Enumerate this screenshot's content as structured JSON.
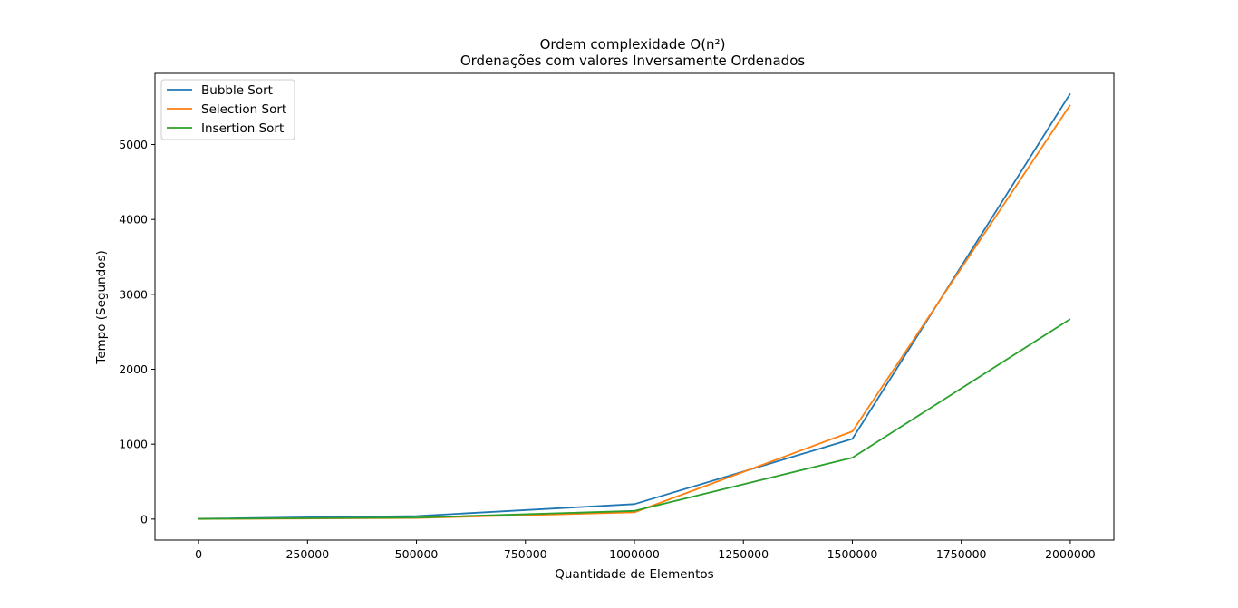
{
  "chart_data": {
    "type": "line",
    "title": "Ordem complexidade O(n²)",
    "subtitle": "Ordenações com valores Inversamente Ordenados",
    "xlabel": "Quantidade de Elementos",
    "ylabel": "Tempo (Segundos)",
    "xlim": [
      -100000,
      2100000
    ],
    "ylim": [
      -280,
      5950
    ],
    "xticks": [
      0,
      250000,
      500000,
      750000,
      1000000,
      1250000,
      1500000,
      1750000,
      2000000
    ],
    "xtick_labels": [
      "0",
      "250000",
      "500000",
      "750000",
      "1000000",
      "1250000",
      "1500000",
      "1750000",
      "2000000"
    ],
    "yticks": [
      0,
      1000,
      2000,
      3000,
      4000,
      5000
    ],
    "ytick_labels": [
      "0",
      "1000",
      "2000",
      "3000",
      "4000",
      "5000"
    ],
    "grid": false,
    "legend_position": "top-left",
    "x": [
      0,
      500000,
      1000000,
      1500000,
      2000000
    ],
    "series": [
      {
        "name": "Bubble Sort",
        "color": "#1f77b4",
        "values": [
          5,
          40,
          200,
          1070,
          5680
        ]
      },
      {
        "name": "Selection Sort",
        "color": "#ff7f0e",
        "values": [
          2,
          15,
          90,
          1170,
          5530
        ]
      },
      {
        "name": "Insertion Sort",
        "color": "#2ca02c",
        "values": [
          3,
          20,
          110,
          820,
          2670
        ]
      }
    ]
  }
}
